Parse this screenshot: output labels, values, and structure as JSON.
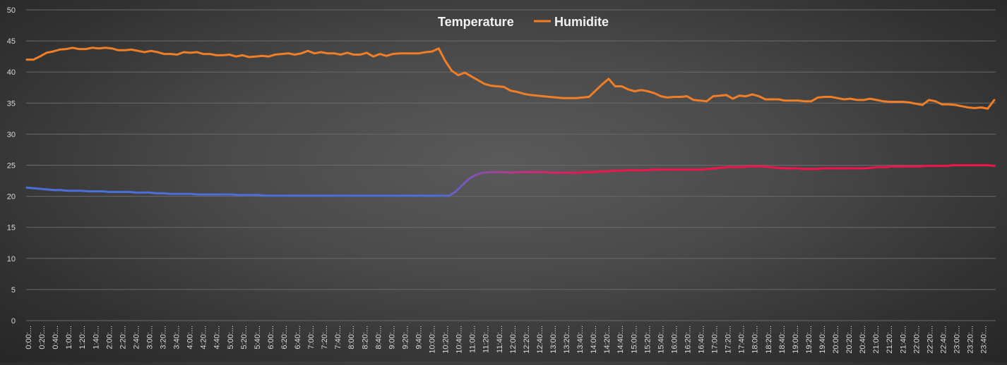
{
  "chart_data": {
    "type": "line",
    "title": "",
    "xlabel": "",
    "ylabel": "",
    "ylim": [
      0,
      50
    ],
    "yticks": [
      0,
      5,
      10,
      15,
      20,
      25,
      30,
      35,
      40,
      45,
      50
    ],
    "grid": true,
    "legend_position": "top-center",
    "xtick_labels": [
      "0:00:...",
      "0:20:...",
      "0:40:...",
      "1:00:...",
      "1:20:...",
      "1:40:...",
      "2:00:...",
      "2:20:...",
      "2:40:...",
      "3:00:...",
      "3:20:...",
      "3:40:...",
      "4:00:...",
      "4:20:...",
      "4:40:...",
      "5:00:...",
      "5:20:...",
      "5:40:...",
      "6:00:...",
      "6:20:...",
      "6:40:...",
      "7:00:...",
      "7:20:...",
      "7:40:...",
      "8:00:...",
      "8:20:...",
      "8:40:...",
      "9:00:...",
      "9:20:...",
      "9:40:...",
      "10:00:...",
      "10:20:...",
      "10:40:...",
      "11:00:...",
      "11:20:...",
      "11:40:...",
      "12:00:...",
      "12:20:...",
      "12:40:...",
      "13:00:...",
      "13:20:...",
      "13:40:...",
      "14:00:...",
      "14:20:...",
      "14:40:...",
      "15:00:...",
      "15:20:...",
      "15:40:...",
      "16:00:...",
      "16:20:...",
      "16:40:...",
      "17:00:...",
      "17:20:...",
      "17:40:...",
      "18:00:...",
      "18:20:...",
      "18:40:...",
      "19:00:...",
      "19:20:...",
      "19:40:...",
      "20:00:...",
      "20:20:...",
      "20:40:...",
      "21:00:...",
      "21:20:...",
      "21:40:...",
      "22:00:...",
      "22:20:...",
      "22:40:...",
      "23:00:...",
      "23:20:...",
      "23:40:..."
    ],
    "series": [
      {
        "name": "Temperature",
        "color_start": "#4a6fd8",
        "color_end": "#f0134d",
        "values": [
          21.4,
          21.3,
          21.2,
          21.1,
          21.0,
          21.0,
          20.9,
          20.9,
          20.9,
          20.8,
          20.8,
          20.8,
          20.7,
          20.7,
          20.7,
          20.7,
          20.6,
          20.6,
          20.6,
          20.5,
          20.5,
          20.4,
          20.4,
          20.4,
          20.4,
          20.3,
          20.3,
          20.3,
          20.3,
          20.3,
          20.3,
          20.2,
          20.2,
          20.2,
          20.2,
          20.1,
          20.1,
          20.1,
          20.1,
          20.1,
          20.1,
          20.1,
          20.1,
          20.1,
          20.1,
          20.1,
          20.1,
          20.1,
          20.1,
          20.1,
          20.1,
          20.1,
          20.1,
          20.1,
          20.1,
          20.1,
          20.1,
          20.1,
          20.1,
          20.1,
          20.1,
          20.1,
          20.1,
          20.8,
          21.9,
          22.9,
          23.5,
          23.8,
          23.9,
          23.9,
          23.9,
          23.8,
          23.9,
          23.9,
          23.9,
          23.9,
          23.9,
          23.8,
          23.8,
          23.8,
          23.8,
          23.8,
          23.9,
          23.9,
          24.0,
          24.0,
          24.1,
          24.1,
          24.2,
          24.2,
          24.2,
          24.2,
          24.3,
          24.3,
          24.3,
          24.3,
          24.3,
          24.3,
          24.3,
          24.3,
          24.4,
          24.5,
          24.6,
          24.7,
          24.7,
          24.7,
          24.8,
          24.8,
          24.8,
          24.7,
          24.6,
          24.5,
          24.5,
          24.5,
          24.4,
          24.4,
          24.4,
          24.5,
          24.5,
          24.5,
          24.5,
          24.5,
          24.5,
          24.5,
          24.6,
          24.7,
          24.7,
          24.8,
          24.8,
          24.8,
          24.8,
          24.8,
          24.9,
          24.9,
          24.9,
          24.9,
          25.0,
          25.0,
          25.0,
          25.0,
          25.0,
          25.0,
          24.9
        ]
      },
      {
        "name": "Humidite",
        "color": "#f07e26",
        "values": [
          42.0,
          42.0,
          42.5,
          43.1,
          43.3,
          43.6,
          43.7,
          43.9,
          43.7,
          43.7,
          43.9,
          43.8,
          43.9,
          43.8,
          43.5,
          43.5,
          43.6,
          43.4,
          43.2,
          43.4,
          43.2,
          42.9,
          42.9,
          42.8,
          43.2,
          43.1,
          43.2,
          42.9,
          42.9,
          42.7,
          42.7,
          42.8,
          42.5,
          42.7,
          42.4,
          42.5,
          42.6,
          42.5,
          42.8,
          42.9,
          43.0,
          42.8,
          43.0,
          43.4,
          43.0,
          43.2,
          43.0,
          43.0,
          42.8,
          43.1,
          42.8,
          42.8,
          43.1,
          42.5,
          42.9,
          42.6,
          42.9,
          43.0,
          43.0,
          43.0,
          43.0,
          43.2,
          43.3,
          43.8,
          41.8,
          40.2,
          39.5,
          39.9,
          39.3,
          38.7,
          38.1,
          37.8,
          37.7,
          37.6,
          37.0,
          36.8,
          36.5,
          36.3,
          36.2,
          36.1,
          36.0,
          35.9,
          35.8,
          35.8,
          35.8,
          35.9,
          36.0,
          37.0,
          38.0,
          38.9,
          37.7,
          37.7,
          37.2,
          36.9,
          37.1,
          36.9,
          36.6,
          36.1,
          35.9,
          36.0,
          36.0,
          36.1,
          35.5,
          35.4,
          35.3,
          36.1,
          36.2,
          36.3,
          35.7,
          36.2,
          36.1,
          36.4,
          36.1,
          35.6,
          35.6,
          35.6,
          35.4,
          35.4,
          35.4,
          35.3,
          35.3,
          35.9,
          36.0,
          36.0,
          35.8,
          35.6,
          35.7,
          35.5,
          35.5,
          35.7,
          35.5,
          35.3,
          35.2,
          35.2,
          35.2,
          35.1,
          34.9,
          34.7,
          35.5,
          35.3,
          34.8,
          34.8,
          34.7,
          34.5,
          34.3,
          34.2,
          34.3,
          34.1,
          35.5
        ]
      }
    ]
  }
}
